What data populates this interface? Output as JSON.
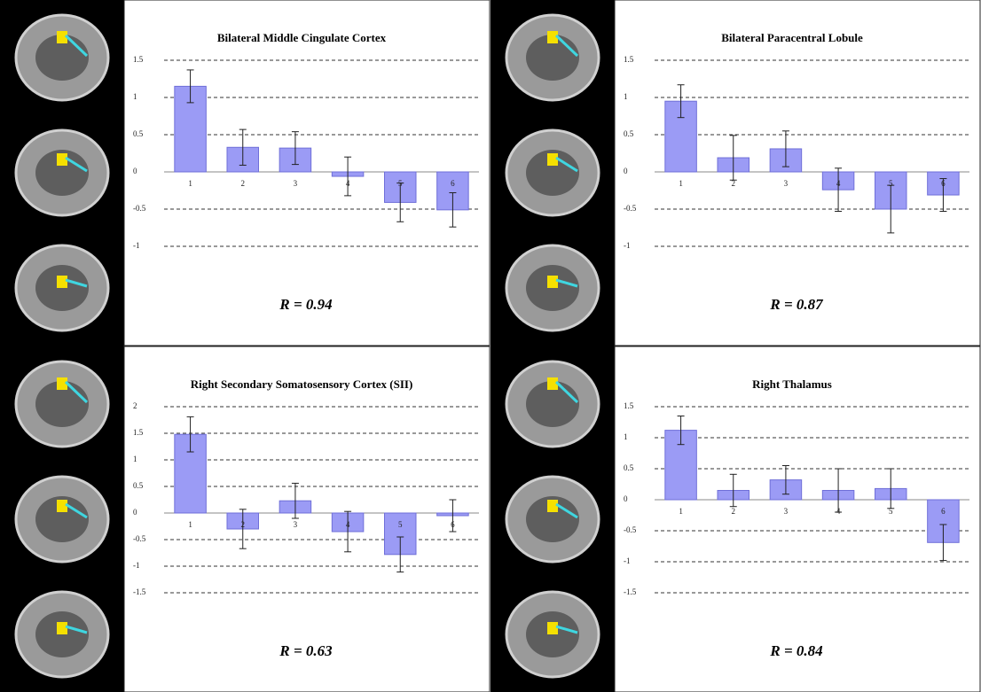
{
  "chart_data": [
    {
      "type": "bar",
      "title": "Bilateral Middle Cingulate Cortex",
      "annotation": "R = 0.94",
      "categories": [
        "1",
        "2",
        "3",
        "4",
        "5",
        "6"
      ],
      "values": [
        1.15,
        0.33,
        0.32,
        -0.06,
        -0.41,
        -0.51
      ],
      "errors": [
        0.22,
        0.24,
        0.22,
        0.26,
        0.26,
        0.23
      ],
      "color": "#9b9bf5",
      "ylim": [
        -1,
        1.5
      ],
      "yticks": [
        -1,
        -0.5,
        0,
        0.5,
        1,
        1.5
      ],
      "grid": true
    },
    {
      "type": "bar",
      "title": "Bilateral Paracentral Lobule",
      "annotation": "R = 0.87",
      "categories": [
        "1",
        "2",
        "3",
        "4",
        "5",
        "6"
      ],
      "values": [
        0.95,
        0.19,
        0.31,
        -0.24,
        -0.5,
        -0.31
      ],
      "errors": [
        0.22,
        0.3,
        0.24,
        0.29,
        0.32,
        0.22
      ],
      "color": "#9b9bf5",
      "ylim": [
        -1,
        1.5
      ],
      "yticks": [
        -1,
        -0.5,
        0,
        0.5,
        1,
        1.5
      ],
      "grid": true
    },
    {
      "type": "bar",
      "title": "Right Secondary Somatosensory Cortex (SII)",
      "annotation": "R = 0.63",
      "categories": [
        "1",
        "2",
        "3",
        "4",
        "5",
        "6"
      ],
      "values": [
        1.48,
        -0.3,
        0.23,
        -0.35,
        -0.78,
        -0.05
      ],
      "errors": [
        0.33,
        0.37,
        0.33,
        0.38,
        0.33,
        0.3
      ],
      "color": "#9b9bf5",
      "ylim": [
        -1.5,
        2
      ],
      "yticks": [
        -1.5,
        -1,
        -0.5,
        0,
        0.5,
        1,
        1.5,
        2
      ],
      "grid": true
    },
    {
      "type": "bar",
      "title": "Right Thalamus",
      "annotation": "R = 0.84",
      "categories": [
        "1",
        "2",
        "3",
        "4",
        "5",
        "6"
      ],
      "values": [
        1.12,
        0.15,
        0.32,
        0.15,
        0.18,
        -0.69
      ],
      "errors": [
        0.23,
        0.26,
        0.23,
        0.35,
        0.32,
        0.29
      ],
      "color": "#9b9bf5",
      "ylim": [
        -1.5,
        1.5
      ],
      "yticks": [
        -1.5,
        -1,
        -0.5,
        0,
        0.5,
        1,
        1.5
      ],
      "grid": true
    }
  ]
}
